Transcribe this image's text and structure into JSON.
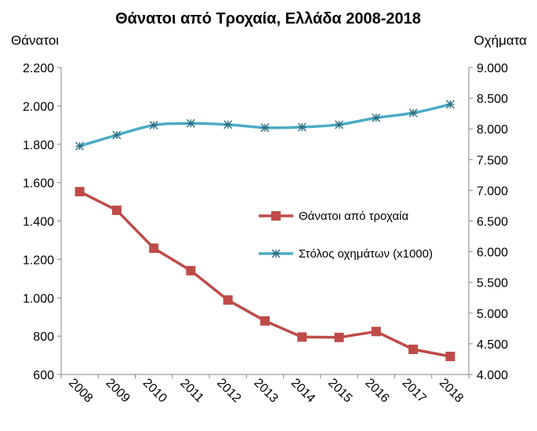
{
  "chart_data": {
    "type": "line",
    "title": "Θάνατοι από Τροχαία, Ελλάδα 2008-2018",
    "ylabel_left": "Θάνατοι",
    "ylabel_right": "Οχήματα",
    "categories": [
      "2008",
      "2009",
      "2010",
      "2011",
      "2012",
      "2013",
      "2014",
      "2015",
      "2016",
      "2017",
      "2018"
    ],
    "y_left": {
      "min": 600,
      "max": 2200,
      "step": 200,
      "ticks": [
        "600",
        "800",
        "1.000",
        "1.200",
        "1.400",
        "1.600",
        "1.800",
        "2.000",
        "2.200"
      ]
    },
    "y_right": {
      "min": 4000,
      "max": 9000,
      "step": 500,
      "ticks": [
        "4.000",
        "4.500",
        "5.000",
        "5.500",
        "6.000",
        "6.500",
        "7.000",
        "7.500",
        "8.000",
        "8.500",
        "9.000"
      ]
    },
    "grid": false,
    "legend_position": "center-right",
    "series": [
      {
        "name": "Θάνατοι από τροχαία",
        "axis": "left",
        "marker": "square",
        "color": "#BE4B48",
        "values": [
          1553,
          1456,
          1258,
          1141,
          988,
          879,
          795,
          793,
          824,
          731,
          694
        ]
      },
      {
        "name": "Στόλος οχημάτων (x1000)",
        "axis": "right",
        "marker": "star",
        "color": "#4BACC6",
        "values": [
          7720,
          7900,
          8060,
          8090,
          8070,
          8020,
          8030,
          8070,
          8180,
          8260,
          8400
        ]
      }
    ]
  }
}
